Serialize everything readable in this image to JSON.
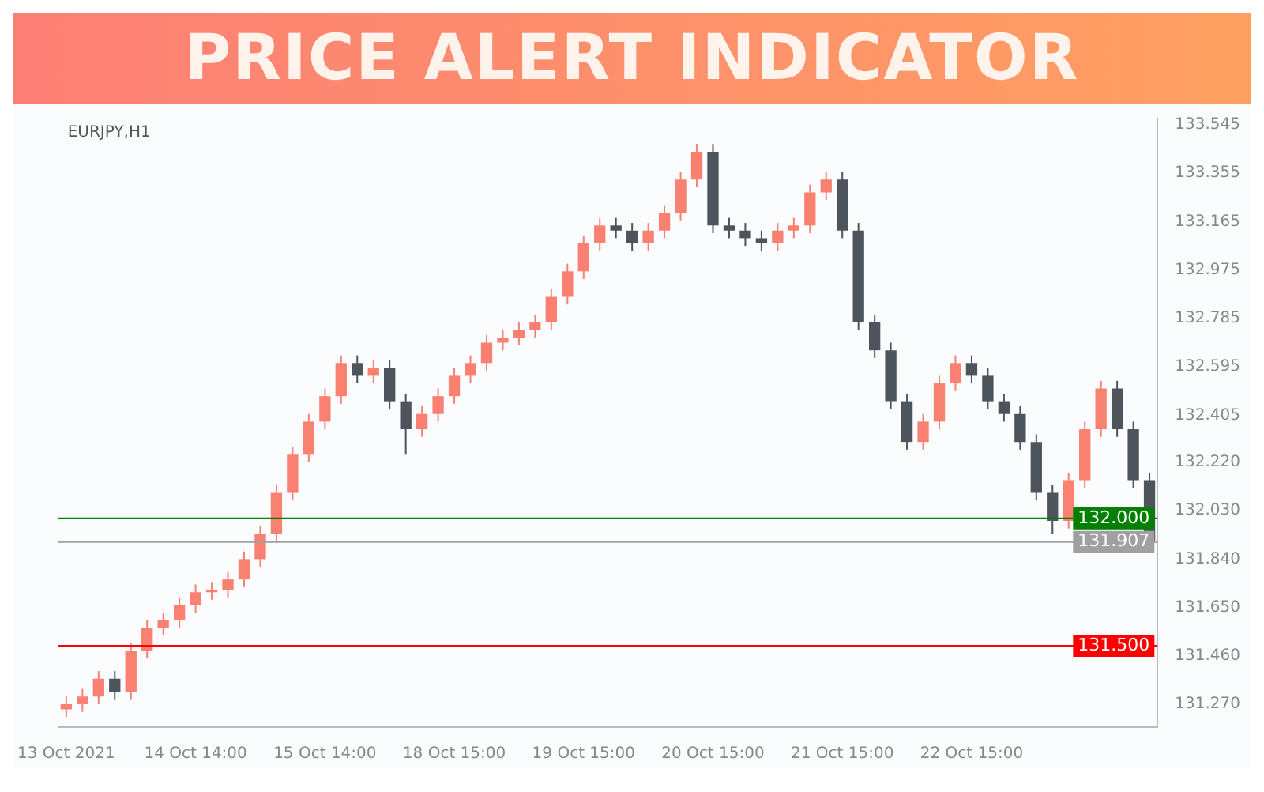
{
  "chart_data": {
    "type": "candlestick",
    "title": "PRICE ALERT INDICATOR",
    "annotations": [
      "EURJPY,H1"
    ],
    "categories": [
      "13 Oct 2021",
      null,
      null,
      null,
      null,
      null,
      null,
      null,
      "14 Oct 14:00",
      null,
      null,
      null,
      null,
      null,
      null,
      null,
      "15 Oct 14:00",
      null,
      null,
      null,
      null,
      null,
      null,
      null,
      "18 Oct 15:00",
      null,
      null,
      null,
      null,
      null,
      null,
      null,
      "19 Oct 15:00",
      null,
      null,
      null,
      null,
      null,
      null,
      null,
      "20 Oct 15:00",
      null,
      null,
      null,
      null,
      null,
      null,
      null,
      "21 Oct 15:00",
      null,
      null,
      null,
      null,
      null,
      null,
      null,
      "22 Oct 15:00",
      null,
      null,
      null,
      null,
      null,
      null,
      null,
      null,
      null,
      null,
      null
    ],
    "ohlc": [
      [
        131.25,
        131.3,
        131.22,
        131.27
      ],
      [
        131.27,
        131.33,
        131.24,
        131.3
      ],
      [
        131.3,
        131.4,
        131.27,
        131.37
      ],
      [
        131.37,
        131.4,
        131.29,
        131.32
      ],
      [
        131.32,
        131.51,
        131.29,
        131.48
      ],
      [
        131.48,
        131.6,
        131.45,
        131.57
      ],
      [
        131.57,
        131.63,
        131.54,
        131.6
      ],
      [
        131.6,
        131.69,
        131.57,
        131.66
      ],
      [
        131.66,
        131.74,
        131.63,
        131.71
      ],
      [
        131.71,
        131.75,
        131.68,
        131.72
      ],
      [
        131.72,
        131.79,
        131.69,
        131.76
      ],
      [
        131.76,
        131.87,
        131.73,
        131.84
      ],
      [
        131.84,
        131.97,
        131.81,
        131.94
      ],
      [
        131.94,
        132.13,
        131.91,
        132.1
      ],
      [
        132.1,
        132.28,
        132.07,
        132.25
      ],
      [
        132.25,
        132.41,
        132.22,
        132.38
      ],
      [
        132.38,
        132.51,
        132.35,
        132.48
      ],
      [
        132.48,
        132.64,
        132.45,
        132.61
      ],
      [
        132.61,
        132.64,
        132.53,
        132.56
      ],
      [
        132.56,
        132.62,
        132.53,
        132.59
      ],
      [
        132.59,
        132.62,
        132.43,
        132.46
      ],
      [
        132.46,
        132.49,
        132.25,
        132.35
      ],
      [
        132.35,
        132.44,
        132.32,
        132.41
      ],
      [
        132.41,
        132.51,
        132.38,
        132.48
      ],
      [
        132.48,
        132.59,
        132.45,
        132.56
      ],
      [
        132.56,
        132.64,
        132.53,
        132.61
      ],
      [
        132.61,
        132.72,
        132.58,
        132.69
      ],
      [
        132.69,
        132.74,
        132.66,
        132.71
      ],
      [
        132.71,
        132.77,
        132.68,
        132.74
      ],
      [
        132.74,
        132.8,
        132.71,
        132.77
      ],
      [
        132.77,
        132.9,
        132.74,
        132.87
      ],
      [
        132.87,
        133.0,
        132.84,
        132.97
      ],
      [
        132.97,
        133.11,
        132.94,
        133.08
      ],
      [
        133.08,
        133.18,
        133.05,
        133.15
      ],
      [
        133.15,
        133.18,
        133.1,
        133.13
      ],
      [
        133.13,
        133.16,
        133.05,
        133.08
      ],
      [
        133.08,
        133.16,
        133.05,
        133.13
      ],
      [
        133.13,
        133.23,
        133.1,
        133.2
      ],
      [
        133.2,
        133.36,
        133.17,
        133.33
      ],
      [
        133.33,
        133.47,
        133.3,
        133.44
      ],
      [
        133.44,
        133.47,
        133.12,
        133.15
      ],
      [
        133.15,
        133.18,
        133.1,
        133.13
      ],
      [
        133.13,
        133.16,
        133.07,
        133.1
      ],
      [
        133.1,
        133.13,
        133.05,
        133.08
      ],
      [
        133.08,
        133.16,
        133.05,
        133.13
      ],
      [
        133.13,
        133.18,
        133.1,
        133.15
      ],
      [
        133.15,
        133.31,
        133.12,
        133.28
      ],
      [
        133.28,
        133.36,
        133.25,
        133.33
      ],
      [
        133.33,
        133.36,
        133.1,
        133.13
      ],
      [
        133.13,
        133.16,
        132.74,
        132.77
      ],
      [
        132.77,
        132.8,
        132.63,
        132.66
      ],
      [
        132.66,
        132.69,
        132.43,
        132.46
      ],
      [
        132.46,
        132.49,
        132.27,
        132.3
      ],
      [
        132.3,
        132.41,
        132.27,
        132.38
      ],
      [
        132.38,
        132.56,
        132.35,
        132.53
      ],
      [
        132.53,
        132.64,
        132.5,
        132.61
      ],
      [
        132.61,
        132.64,
        132.53,
        132.56
      ],
      [
        132.56,
        132.59,
        132.43,
        132.46
      ],
      [
        132.46,
        132.49,
        132.38,
        132.41
      ],
      [
        132.41,
        132.44,
        132.27,
        132.3
      ],
      [
        132.3,
        132.33,
        132.07,
        132.1
      ],
      [
        132.1,
        132.13,
        131.94,
        131.99
      ],
      [
        131.99,
        132.18,
        131.96,
        132.15
      ],
      [
        132.15,
        132.38,
        132.12,
        132.35
      ],
      [
        132.35,
        132.54,
        132.32,
        132.51
      ],
      [
        132.51,
        132.54,
        132.32,
        132.35
      ],
      [
        132.35,
        132.38,
        132.12,
        132.15
      ],
      [
        132.15,
        132.18,
        131.87,
        131.91
      ]
    ],
    "colors": [
      "#fa8072",
      "#fa8072",
      "#fa8072",
      "#4d545b",
      "#fa8072",
      "#fa8072",
      "#fa8072",
      "#fa8072",
      "#fa8072",
      "#fa8072",
      "#fa8072",
      "#fa8072",
      "#fa8072",
      "#fa8072",
      "#fa8072",
      "#fa8072",
      "#fa8072",
      "#fa8072",
      "#4d545b",
      "#fa8072",
      "#4d545b",
      "#4d545b",
      "#fa8072",
      "#fa8072",
      "#fa8072",
      "#fa8072",
      "#fa8072",
      "#fa8072",
      "#fa8072",
      "#fa8072",
      "#fa8072",
      "#fa8072",
      "#fa8072",
      "#fa8072",
      "#4d545b",
      "#4d545b",
      "#fa8072",
      "#fa8072",
      "#fa8072",
      "#fa8072",
      "#4d545b",
      "#4d545b",
      "#4d545b",
      "#4d545b",
      "#fa8072",
      "#fa8072",
      "#fa8072",
      "#fa8072",
      "#4d545b",
      "#4d545b",
      "#4d545b",
      "#4d545b",
      "#4d545b",
      "#fa8072",
      "#fa8072",
      "#fa8072",
      "#4d545b",
      "#4d545b",
      "#4d545b",
      "#4d545b",
      "#4d545b",
      "#4d545b",
      "#fa8072",
      "#fa8072",
      "#fa8072",
      "#4d545b",
      "#4d545b",
      "#4d545b"
    ],
    "ylim": [
      131.18,
      133.57
    ],
    "yticks": [
      133.545,
      133.355,
      133.165,
      132.975,
      132.785,
      132.595,
      132.405,
      {
        "value": 132.22,
        "label": "132.220"
      },
      {
        "value": 132.03,
        "label": "132.030"
      },
      {
        "value": 131.84,
        "label": "131.840"
      },
      {
        "value": 131.65,
        "label": "131.650"
      },
      {
        "value": 131.46,
        "label": "131.460"
      },
      {
        "value": 131.27,
        "label": "131.270"
      }
    ],
    "ref_lines": [
      {
        "axis": "y",
        "value": 132.0,
        "label": "132.000",
        "color": "#008000"
      },
      {
        "axis": "y",
        "value": 131.907,
        "label": "131.907",
        "color": "#a0a0a0"
      },
      {
        "axis": "y",
        "value": 131.5,
        "label": "131.500",
        "color": "#ff0000"
      }
    ],
    "grid": false,
    "legend": false
  }
}
